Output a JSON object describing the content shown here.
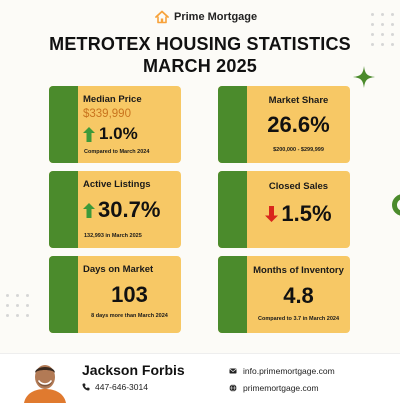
{
  "brand": {
    "name": "Prime Mortgage",
    "logo_icon": "house-icon",
    "accent": "#f7a23a"
  },
  "title": {
    "line1": "METROTEX HOUSING STATISTICS",
    "line2": "MARCH 2025"
  },
  "colors": {
    "card": "#f7c865",
    "card_bar": "#4b8b2c",
    "up_arrow": "#3d9a3a",
    "down_arrow": "#d9261c"
  },
  "cards": {
    "median_price": {
      "label": "Median Price",
      "value": "$339,990",
      "change": "1.0%",
      "direction": "up",
      "note": "Compared to March 2024"
    },
    "market_share": {
      "label": "Market Share",
      "value": "26.6%",
      "note": "$200,000 - $299,999"
    },
    "active_listings": {
      "label": "Active Listings",
      "value": "30.7%",
      "direction": "up",
      "note": "132,993 in March 2025"
    },
    "closed_sales": {
      "label": "Closed Sales",
      "value": "1.5%",
      "direction": "down"
    },
    "days_on_market": {
      "label": "Days on Market",
      "value": "103",
      "note": "8 days more than March 2024"
    },
    "months_inventory": {
      "label": "Months of Inventory",
      "value": "4.8",
      "note": "Compared to 3.7 in March 2024"
    }
  },
  "footer": {
    "agent_name": "Jackson Forbis",
    "phone": "447-646-3014",
    "email": "info.primemortgage.com",
    "website": "primemortgage.com",
    "phone_icon": "phone-icon",
    "email_icon": "email-icon",
    "web_icon": "globe-icon"
  }
}
